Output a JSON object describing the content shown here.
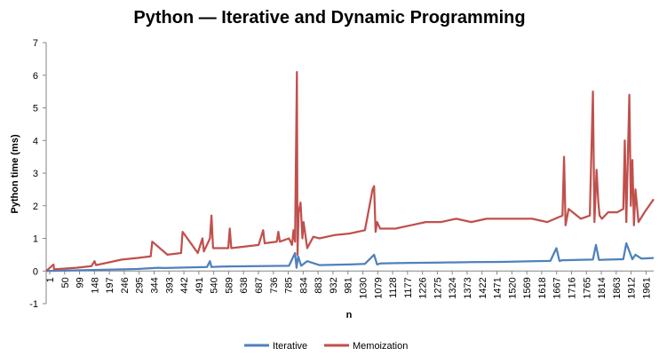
{
  "chart_data": {
    "type": "line",
    "title": "Python — Iterative and Dynamic Programming",
    "xlabel": "n",
    "ylabel": "Python time (ms)",
    "ylim": [
      -1,
      7
    ],
    "yticks": [
      -1,
      0,
      1,
      2,
      3,
      4,
      5,
      6,
      7
    ],
    "grid": false,
    "legend_position": "bottom",
    "x_range": [
      1,
      2000
    ],
    "categories": [
      "1",
      "50",
      "99",
      "148",
      "197",
      "246",
      "295",
      "344",
      "393",
      "442",
      "491",
      "540",
      "589",
      "638",
      "687",
      "736",
      "785",
      "834",
      "883",
      "932",
      "981",
      "1030",
      "1079",
      "1128",
      "1177",
      "1226",
      "1275",
      "1324",
      "1373",
      "1422",
      "1471",
      "1520",
      "1569",
      "1618",
      "1667",
      "1716",
      "1765",
      "1814",
      "1863",
      "1912",
      "1961"
    ],
    "series": [
      {
        "name": "Iterative",
        "color": "#4F81BD",
        "x": [
          1,
          150,
          300,
          370,
          390,
          530,
          540,
          545,
          560,
          600,
          700,
          800,
          820,
          825,
          830,
          840,
          860,
          900,
          1000,
          1050,
          1080,
          1090,
          1100,
          1150,
          1200,
          1300,
          1400,
          1500,
          1600,
          1660,
          1680,
          1690,
          1700,
          1750,
          1800,
          1810,
          1820,
          1850,
          1900,
          1910,
          1930,
          1940,
          1960,
          2000
        ],
        "values": [
          0.0,
          0.03,
          0.06,
          0.1,
          0.09,
          0.12,
          0.3,
          0.12,
          0.13,
          0.14,
          0.15,
          0.16,
          0.55,
          0.1,
          0.45,
          0.16,
          0.3,
          0.18,
          0.2,
          0.22,
          0.5,
          0.2,
          0.23,
          0.24,
          0.25,
          0.26,
          0.27,
          0.28,
          0.3,
          0.31,
          0.7,
          0.31,
          0.33,
          0.34,
          0.35,
          0.8,
          0.34,
          0.35,
          0.36,
          0.85,
          0.36,
          0.5,
          0.38,
          0.4
        ]
      },
      {
        "name": "Memoization",
        "color": "#C0504D",
        "x": [
          1,
          25,
          27,
          100,
          150,
          160,
          165,
          250,
          300,
          345,
          350,
          400,
          445,
          450,
          500,
          515,
          520,
          540,
          545,
          550,
          600,
          605,
          610,
          700,
          715,
          720,
          760,
          765,
          770,
          800,
          810,
          815,
          820,
          826,
          828,
          832,
          838,
          844,
          848,
          860,
          880,
          900,
          950,
          1000,
          1050,
          1075,
          1080,
          1085,
          1090,
          1100,
          1150,
          1200,
          1250,
          1300,
          1350,
          1400,
          1450,
          1500,
          1550,
          1600,
          1650,
          1700,
          1705,
          1710,
          1720,
          1760,
          1790,
          1800,
          1805,
          1812,
          1818,
          1822,
          1830,
          1850,
          1880,
          1900,
          1905,
          1910,
          1920,
          1925,
          1930,
          1935,
          1940,
          1950,
          1970,
          2000
        ],
        "values": [
          0.0,
          0.2,
          0.05,
          0.1,
          0.15,
          0.3,
          0.18,
          0.35,
          0.4,
          0.45,
          0.9,
          0.5,
          0.55,
          1.2,
          0.55,
          1.0,
          0.6,
          1.0,
          1.7,
          0.7,
          0.7,
          1.3,
          0.7,
          0.8,
          1.25,
          0.85,
          0.9,
          1.2,
          0.9,
          1.0,
          0.8,
          1.25,
          0.9,
          6.1,
          0.5,
          1.8,
          2.1,
          1.0,
          1.5,
          0.7,
          1.05,
          1.0,
          1.1,
          1.15,
          1.25,
          2.5,
          2.6,
          1.2,
          1.5,
          1.3,
          1.3,
          1.4,
          1.5,
          1.5,
          1.6,
          1.5,
          1.6,
          1.6,
          1.6,
          1.6,
          1.5,
          1.7,
          3.5,
          1.4,
          1.9,
          1.6,
          1.7,
          5.5,
          1.5,
          3.1,
          2.1,
          1.7,
          1.6,
          1.8,
          1.8,
          1.9,
          4.0,
          1.5,
          5.4,
          2.0,
          3.4,
          1.4,
          2.5,
          1.5,
          1.8,
          2.2
        ]
      }
    ]
  }
}
